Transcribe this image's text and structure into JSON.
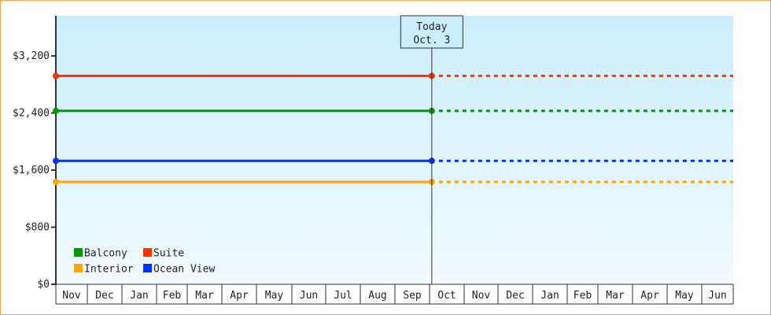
{
  "chart_data": {
    "type": "line",
    "title": "",
    "xlabel": "",
    "ylabel": "",
    "ylim": [
      0,
      3750
    ],
    "y_ticks": [
      0,
      800,
      1600,
      2400,
      3200
    ],
    "y_tick_labels": [
      "$0",
      "$800",
      "$1,600",
      "$2,400",
      "$3,200"
    ],
    "x_tick_labels": [
      "Nov",
      "Dec",
      "Jan",
      "Feb",
      "Mar",
      "Apr",
      "May",
      "Jun",
      "Jul",
      "Aug",
      "Sep",
      "Oct",
      "Nov",
      "Dec",
      "Jan",
      "Feb",
      "Mar",
      "Apr",
      "May",
      "Jun"
    ],
    "today_marker": {
      "line1": "Today",
      "line2": "Oct. 3",
      "month_index": 11,
      "day": 3
    },
    "legend_placement": "bottom-left",
    "series": [
      {
        "name": "Balcony",
        "color": "#009900",
        "value": 2430,
        "start_month_index": 0,
        "projected_dashed_to_end": true
      },
      {
        "name": "Suite",
        "color": "#ff3300",
        "value": 2920,
        "start_month_index": 0,
        "projected_dashed_to_end": true
      },
      {
        "name": "Interior",
        "color": "#ffa500",
        "value": 1435,
        "start_month_index": 0,
        "projected_dashed_to_end": true
      },
      {
        "name": "Ocean View",
        "color": "#0033ff",
        "value": 1730,
        "start_month_index": 0,
        "projected_dashed_to_end": true
      }
    ],
    "grid": false
  }
}
